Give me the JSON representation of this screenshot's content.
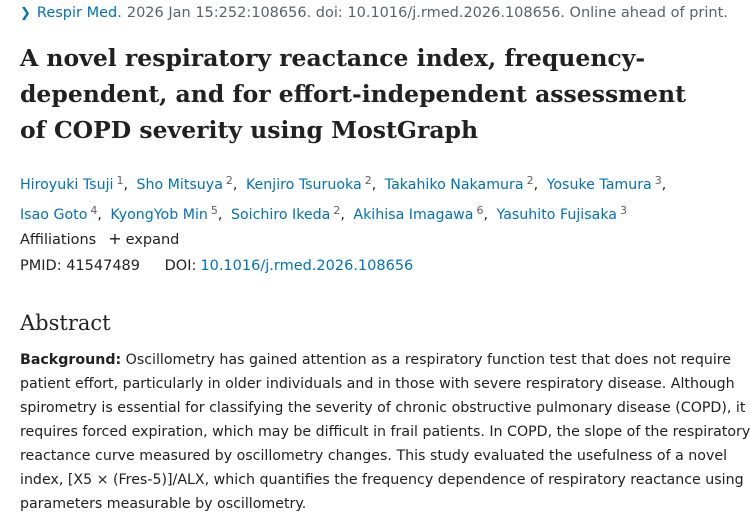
{
  "citation": {
    "journal": "Respir Med.",
    "details": "2026 Jan 15:252:108656. doi: 10.1016/j.rmed.2026.108656. Online ahead of print."
  },
  "article": {
    "title_lines": [
      "A novel respiratory reactance index, frequency-",
      "dependent, and for effort-independent assessment",
      "of COPD severity using MostGraph"
    ]
  },
  "authors": [
    {
      "name": "Hiroyuki Tsuji",
      "aff": "1"
    },
    {
      "name": "Sho Mitsuya",
      "aff": "2"
    },
    {
      "name": "Kenjiro Tsuruoka",
      "aff": "2"
    },
    {
      "name": "Takahiko Nakamura",
      "aff": "2"
    },
    {
      "name": "Yosuke Tamura",
      "aff": "3"
    },
    {
      "name": "Isao Goto",
      "aff": "4"
    },
    {
      "name": "KyongYob Min",
      "aff": "5"
    },
    {
      "name": "Soichiro Ikeda",
      "aff": "2"
    },
    {
      "name": "Akihisa Imagawa",
      "aff": "6"
    },
    {
      "name": "Yasuhito Fujisaka",
      "aff": "3"
    }
  ],
  "affiliations": {
    "label": "Affiliations",
    "expand_label": "expand"
  },
  "identifiers": {
    "pmid_label": "PMID:",
    "pmid": "41547489",
    "doi_label": "DOI:",
    "doi": "10.1016/j.rmed.2026.108656"
  },
  "abstract": {
    "heading": "Abstract",
    "background_label": "Background:",
    "lines": [
      " Oscillometry has gained attention as a respiratory function test that does not require",
      "patient effort, particularly in older individuals and in those with severe respiratory disease. Although",
      "spirometry is essential for classifying the severity of chronic obstructive pulmonary disease (COPD), it",
      "requires forced expiration, which may be difficult in frail patients. In COPD, the slope of the respiratory",
      "reactance curve measured by oscillometry changes. This study evaluated the usefulness of a novel",
      "index, [X5 × (Fres-5)]/ALX, which quantifies the frequency dependence of respiratory reactance using",
      "parameters measurable by oscillometry."
    ]
  }
}
